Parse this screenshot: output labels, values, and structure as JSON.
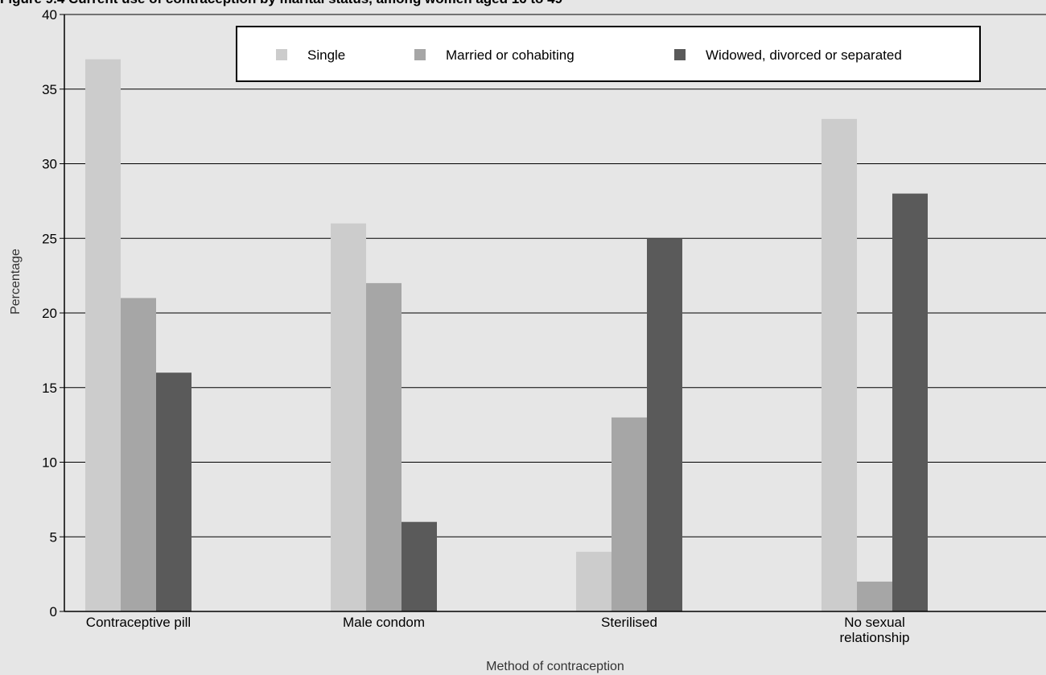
{
  "chart_data": {
    "type": "bar",
    "title": "Figure 9.4 Current use of contraception by marital status, among women aged 16 to 49",
    "xlabel": "Method of contraception",
    "ylabel": "Percentage",
    "ylim": [
      0,
      40
    ],
    "yticks": [
      0,
      5,
      10,
      15,
      20,
      25,
      30,
      35,
      40
    ],
    "grid": true,
    "legend_position": "top",
    "categories": [
      [
        "Contraceptive pill"
      ],
      [
        "Male condom"
      ],
      [
        "Sterilised"
      ],
      [
        "No sexual",
        "relationship"
      ]
    ],
    "series": [
      {
        "name": "Single",
        "color": "#cccccc",
        "values": [
          37,
          26,
          4,
          33
        ]
      },
      {
        "name": "Married or cohabiting",
        "color": "#a6a6a6",
        "values": [
          21,
          22,
          13,
          2
        ]
      },
      {
        "name": "Widowed, divorced or separated",
        "color": "#5a5a5a",
        "values": [
          16,
          6,
          25,
          28
        ]
      }
    ]
  }
}
